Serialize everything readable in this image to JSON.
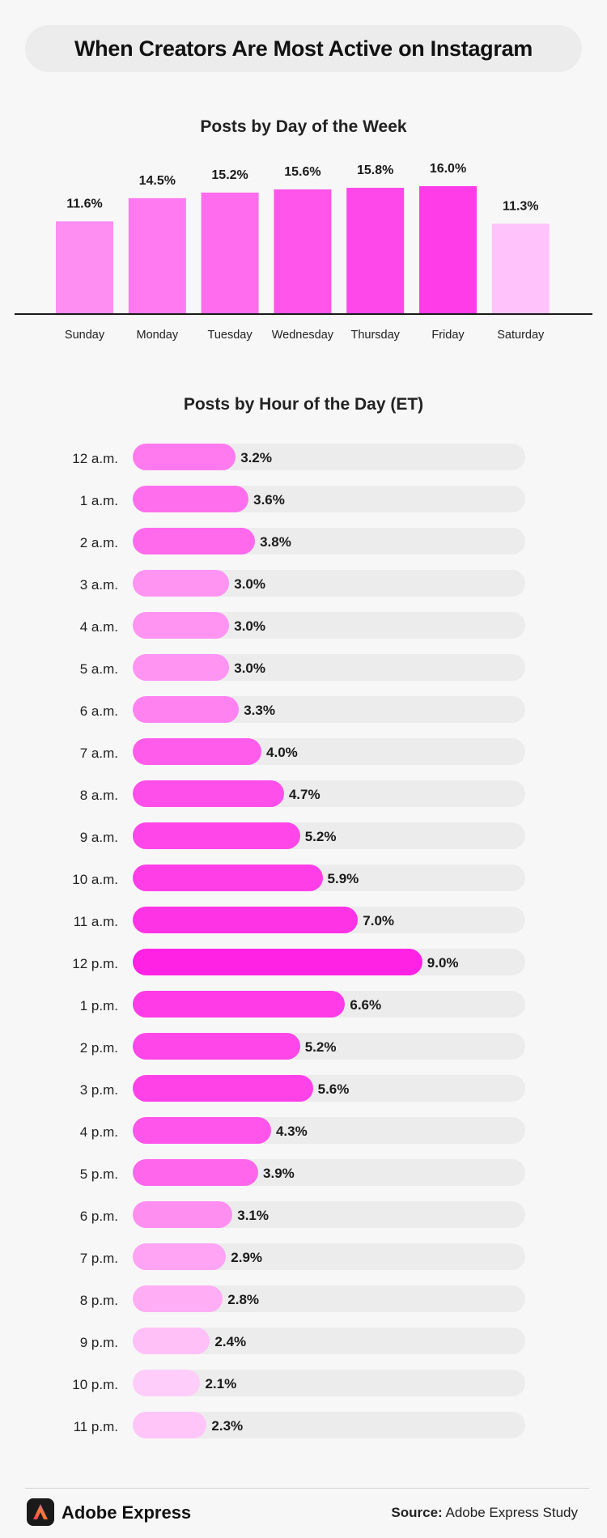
{
  "header": {
    "title": "When Creators Are Most Active on Instagram"
  },
  "chart_data": [
    {
      "type": "bar",
      "title": "Posts by Day of the Week",
      "categories": [
        "Sunday",
        "Monday",
        "Tuesday",
        "Wednesday",
        "Thursday",
        "Friday",
        "Saturday"
      ],
      "values": [
        11.6,
        14.5,
        15.2,
        15.6,
        15.8,
        16.0,
        11.3
      ],
      "value_labels": [
        "11.6%",
        "14.5%",
        "15.2%",
        "15.6%",
        "15.8%",
        "16.0%",
        "11.3%"
      ],
      "colors": [
        "#ff8ef2",
        "#ff7af0",
        "#ff6ced",
        "#ff55ea",
        "#ff48e9",
        "#ff3ce7",
        "#ffc2fa"
      ],
      "unit": "%",
      "ylim": [
        0,
        16.0
      ]
    },
    {
      "type": "bar",
      "orientation": "horizontal",
      "title": "Posts by Hour of the Day (ET)",
      "categories": [
        "12 a.m.",
        "1 a.m.",
        "2 a.m.",
        "3 a.m.",
        "4 a.m.",
        "5 a.m.",
        "6 a.m.",
        "7 a.m.",
        "8 a.m.",
        "9 a.m.",
        "10 a.m.",
        "11 a.m.",
        "12 p.m.",
        "1 p.m.",
        "2 p.m.",
        "3 p.m.",
        "4 p.m.",
        "5 p.m.",
        "6 p.m.",
        "7 p.m.",
        "8 p.m.",
        "9 p.m.",
        "10 p.m.",
        "11 p.m."
      ],
      "values": [
        3.2,
        3.6,
        3.8,
        3.0,
        3.0,
        3.0,
        3.3,
        4.0,
        4.7,
        5.2,
        5.9,
        7.0,
        9.0,
        6.6,
        5.2,
        5.6,
        4.3,
        3.9,
        3.1,
        2.9,
        2.8,
        2.4,
        2.1,
        2.3
      ],
      "value_labels": [
        "3.2%",
        "3.6%",
        "3.8%",
        "3.0%",
        "3.0%",
        "3.0%",
        "3.3%",
        "4.0%",
        "4.7%",
        "5.2%",
        "5.9%",
        "7.0%",
        "9.0%",
        "6.6%",
        "5.2%",
        "5.6%",
        "4.3%",
        "3.9%",
        "3.1%",
        "2.9%",
        "2.8%",
        "2.4%",
        "2.1%",
        "2.3%"
      ],
      "colors": [
        "#ff7aee",
        "#ff6fed",
        "#ff6aed",
        "#ff94f2",
        "#ff94f2",
        "#ff94f2",
        "#ff82f0",
        "#ff5ceb",
        "#ff4fea",
        "#ff46e9",
        "#ff3ee7",
        "#ff33e6",
        "#ff22e4",
        "#ff3ae7",
        "#ff46e9",
        "#ff42e8",
        "#ff55ea",
        "#ff66ec",
        "#ff8ef1",
        "#ffa4f4",
        "#ffaef5",
        "#ffc0f8",
        "#ffcdf9",
        "#ffc4f8"
      ],
      "track_color": "#ececec",
      "unit": "%",
      "xlim": [
        0,
        12.2
      ]
    }
  ],
  "footer": {
    "brand": "Adobe Express",
    "source_label": "Source:",
    "source_text": "Adobe Express Study"
  }
}
